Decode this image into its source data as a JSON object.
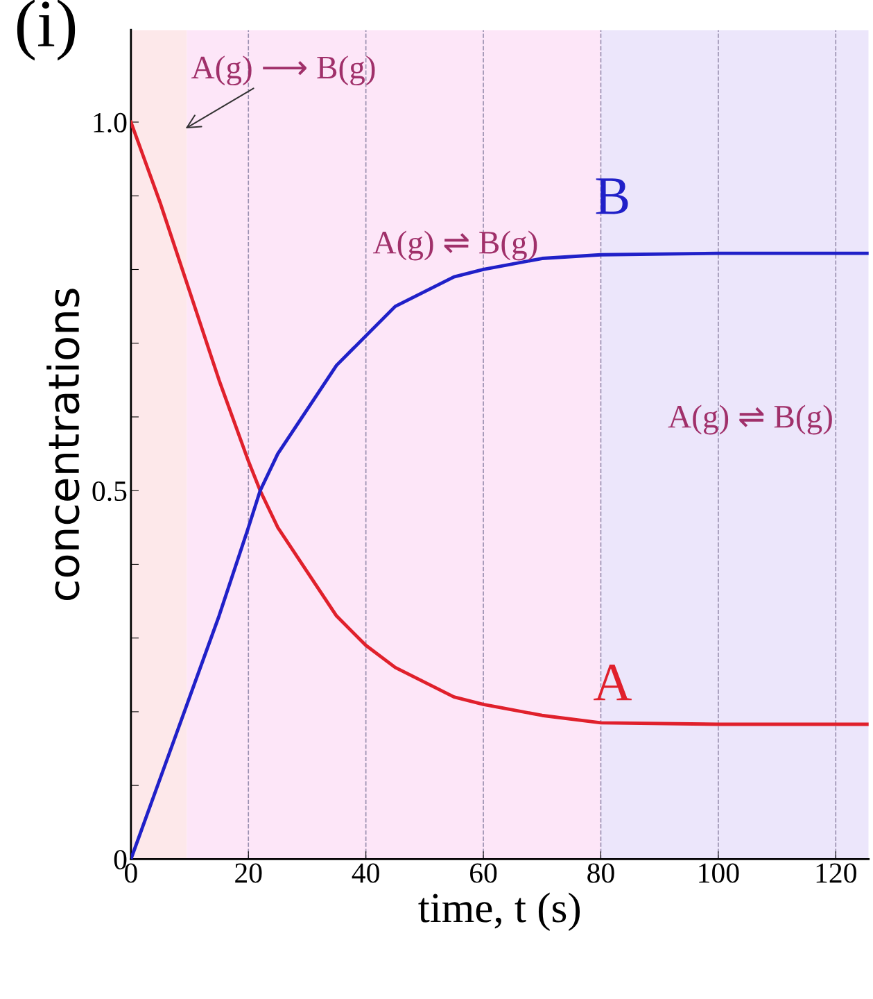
{
  "chart_data": {
    "type": "line",
    "xlabel": "time, t (s)",
    "ylabel": "concentrations",
    "x": [
      0,
      5,
      10,
      15,
      20,
      22,
      25,
      30,
      35,
      40,
      45,
      50,
      55,
      60,
      70,
      80,
      100,
      125.6
    ],
    "series": [
      {
        "name": "A",
        "color": "#e0202c",
        "values": [
          1.0,
          0.89,
          0.77,
          0.65,
          0.54,
          0.5,
          0.45,
          0.39,
          0.33,
          0.29,
          0.26,
          0.24,
          0.22,
          0.21,
          0.195,
          0.185,
          0.183,
          0.183
        ]
      },
      {
        "name": "B",
        "color": "#2020c8",
        "values": [
          0,
          0.11,
          0.22,
          0.33,
          0.45,
          0.5,
          0.55,
          0.61,
          0.67,
          0.71,
          0.75,
          0.77,
          0.79,
          0.8,
          0.815,
          0.82,
          0.822,
          0.822
        ]
      }
    ],
    "xlim": [
      0,
      125.6
    ],
    "ylim": [
      0,
      1.125
    ],
    "xticks": [
      0,
      20,
      40,
      60,
      80,
      100,
      120
    ],
    "yticks": [
      0,
      {
        "value": 0.1,
        "label": null
      },
      {
        "value": 0.2,
        "label": null
      },
      {
        "value": 0.3,
        "label": null
      },
      {
        "value": 0.4,
        "label": null
      },
      {
        "value": 0.5,
        "label": "0.5"
      },
      {
        "value": 0.6,
        "label": null
      },
      {
        "value": 0.7,
        "label": null
      },
      {
        "value": 0.8,
        "label": null
      },
      {
        "value": 0.9,
        "label": null
      },
      {
        "value": 1.0,
        "label": "1.0"
      }
    ],
    "grid": "x",
    "legend": false,
    "line_style": "solid",
    "marker": "none",
    "bands": [
      {
        "axis": "x",
        "from": 0,
        "to": 9.5,
        "color": "#fde8ea"
      },
      {
        "axis": "x",
        "from": 9.5,
        "to": 80,
        "color": "#fde6f8"
      },
      {
        "axis": "x",
        "from": 80,
        "to": 125.6,
        "color": "#ece6fb"
      }
    ],
    "annotations": [
      "(i)",
      {
        "text": "A(g) ⟶ B(g)",
        "x": 9,
        "y": 0.99
      },
      "A(g) ⇌ B(g)",
      "A(g) ⇌ B(g)"
    ]
  }
}
